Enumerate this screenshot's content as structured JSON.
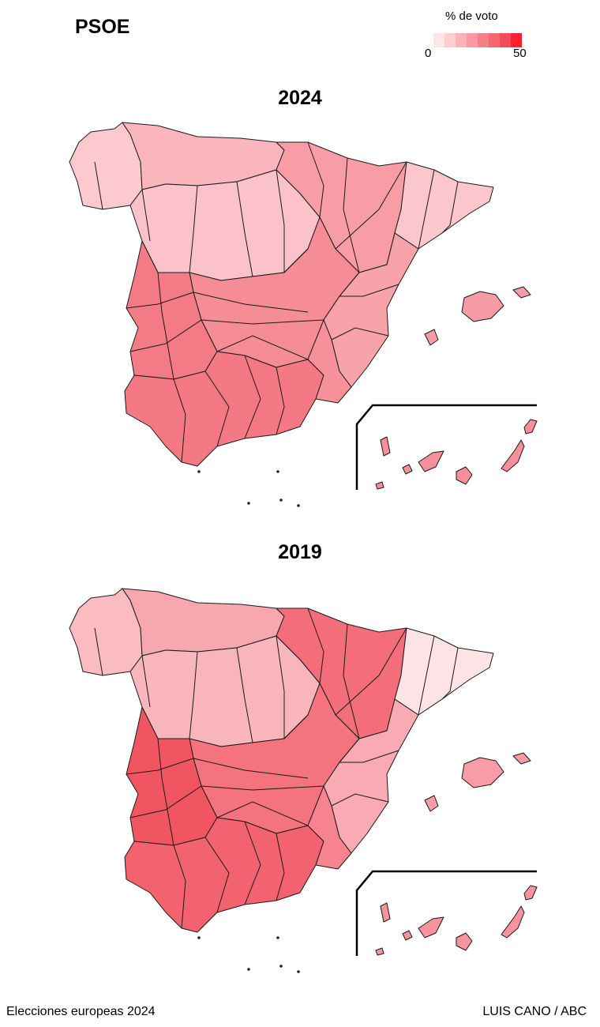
{
  "party": "PSOE",
  "legend": {
    "title": "% de voto",
    "min_label": "0",
    "max_label": "50",
    "colors": [
      "#fde6e8",
      "#fccdd1",
      "#fab3b9",
      "#f89aa1",
      "#f6808a",
      "#f46672",
      "#f24c5a",
      "#ff1f2d"
    ]
  },
  "maps": [
    {
      "year": "2024",
      "style": {
        "north": "#fbb6bd",
        "galicia": "#fcc9ce",
        "castilla": "#fbc3c9",
        "aragon": "#f89da6",
        "catalonia": "#fbc7cc",
        "center": "#f68c96",
        "west": "#f47b86",
        "south": "#f47985",
        "southeast": "#f6909a",
        "valencia": "#f8a2aa",
        "balearics": "#f79ca5",
        "canarias": "#f58f99"
      }
    },
    {
      "year": "2019",
      "style": {
        "north": "#f7a7ae",
        "galicia": "#fabbc1",
        "castilla": "#f9b5bc",
        "aragon": "#f46d7a",
        "catalonia": "#fde3e6",
        "center": "#f4737f",
        "west": "#f25562",
        "south": "#f3626f",
        "southeast": "#f6838e",
        "valencia": "#f9aab2",
        "balearics": "#f89ca5",
        "canarias": "#f6939c"
      }
    }
  ],
  "footer": {
    "source": "Elecciones europeas 2024",
    "credit": "LUIS CANO / ABC"
  }
}
